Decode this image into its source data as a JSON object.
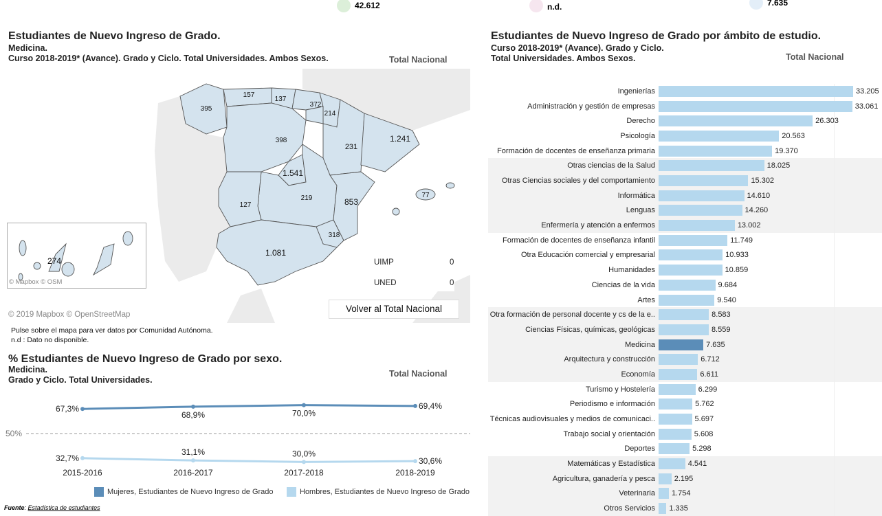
{
  "summary": [
    {
      "value": "42.612",
      "color": "#dcefd9"
    },
    {
      "value": "n.d.",
      "color": "#f6e6ef"
    },
    {
      "value": "7.635",
      "color": "#e3eef8"
    }
  ],
  "map_panel": {
    "title": "Estudiantes de Nuevo Ingreso de Grado.",
    "subtitle1": "Medicina.",
    "subtitle2": "Curso 2018-2019*  (Avance). Grado y Ciclo. Total Universidades. Ambos Sexos.",
    "scope": "Total Nacional",
    "regions": [
      {
        "name": "Galicia",
        "value": "395"
      },
      {
        "name": "Asturias",
        "value": "157"
      },
      {
        "name": "Cantabria",
        "value": "137"
      },
      {
        "name": "País Vasco",
        "value": "372"
      },
      {
        "name": "Navarra",
        "value": "214"
      },
      {
        "name": "Castilla y León",
        "value": "398"
      },
      {
        "name": "Aragón",
        "value": "231"
      },
      {
        "name": "Cataluña",
        "value": "1.241"
      },
      {
        "name": "Madrid",
        "value": "1.541"
      },
      {
        "name": "Castilla-La Mancha",
        "value": "219"
      },
      {
        "name": "Extremadura",
        "value": "127"
      },
      {
        "name": "C. Valenciana",
        "value": "853"
      },
      {
        "name": "Murcia",
        "value": "318"
      },
      {
        "name": "Andalucía",
        "value": "1.081"
      },
      {
        "name": "Baleares",
        "value": "77"
      },
      {
        "name": "Canarias",
        "value": "274"
      }
    ],
    "others": [
      {
        "label": "UIMP",
        "value": "0"
      },
      {
        "label": "UNED",
        "value": "0"
      }
    ],
    "inset_credit": "© Mapbox  © OSM",
    "credit": "© 2019 Mapbox  © OpenStreetMap",
    "back_button": "Volver al Total Nacional",
    "note1": "Pulse sobre el mapa para ver datos por Comunidad Autónoma.",
    "note2": "n.d : Dato no disponible."
  },
  "sex_panel": {
    "title": "% Estudiantes de Nuevo Ingreso de Grado por sexo.",
    "subtitle1": "Medicina.",
    "subtitle2": "Grado y Ciclo. Total Universidades.",
    "scope": "Total Nacional"
  },
  "chart_data": [
    {
      "type": "line",
      "categories": [
        "2015-2016",
        "2016-2017",
        "2017-2018",
        "2018-2019"
      ],
      "reference_line": {
        "value": 50,
        "label": "50%"
      },
      "series": [
        {
          "name": "Mujeres, Estudiantes de Nuevo Ingreso de Grado",
          "values": [
            67.3,
            68.9,
            70.0,
            69.4
          ],
          "labels": [
            "67,3%",
            "68,9%",
            "70,0%",
            "69,4%"
          ],
          "color": "#5b8db8"
        },
        {
          "name": "Hombres, Estudiantes de Nuevo Ingreso de Grado",
          "values": [
            32.7,
            31.1,
            30.0,
            30.6
          ],
          "labels": [
            "32,7%",
            "31,1%",
            "30,0%",
            "30,6%"
          ],
          "color": "#b5d8ee"
        }
      ]
    },
    {
      "type": "bar",
      "orientation": "horizontal",
      "title": "Estudiantes de Nuevo Ingreso de Grado por ámbito de estudio.",
      "subtitle1": "Curso 2018-2019*  (Avance).  Grado y Ciclo.",
      "subtitle2": "Total Universidades.  Ambos Sexos.",
      "scope": "Total Nacional",
      "highlight": "Medicina",
      "color": "#b5d8ee",
      "highlight_color": "#5b8db8",
      "categories": [
        "Ingenierías",
        "Administración y gestión de empresas",
        "Derecho",
        "Psicología",
        "Formación de docentes de enseñanza primaria",
        "Otras ciencias de la Salud",
        "Otras Ciencias sociales y del comportamiento",
        "Informática",
        "Lenguas",
        "Enfermería y atención a enfermos",
        "Formación de docentes de enseñanza infantil",
        "Otra Educación comercial y empresarial",
        "Humanidades",
        "Ciencias de la vida",
        "Artes",
        "Otra formación de personal docente y cs de la e..",
        "Ciencias Físicas, químicas, geológicas",
        "Medicina",
        "Arquitectura y construcción",
        "Economía",
        "Turismo y Hostelería",
        "Periodismo e información",
        "Técnicas audiovisuales y medios de comunicaci..",
        "Trabajo social y orientación",
        "Deportes",
        "Matemáticas y Estadística",
        "Agricultura, ganadería y pesca",
        "Veterinaria",
        "Otros Servicios"
      ],
      "values": [
        33205,
        33061,
        26303,
        20563,
        19370,
        18025,
        15302,
        14610,
        14260,
        13002,
        11749,
        10933,
        10859,
        9684,
        9540,
        8583,
        8559,
        7635,
        6712,
        6611,
        6299,
        5762,
        5697,
        5608,
        5298,
        4541,
        2195,
        1754,
        1335
      ],
      "labels": [
        "33.205",
        "33.061",
        "26.303",
        "20.563",
        "19.370",
        "18.025",
        "15.302",
        "14.610",
        "14.260",
        "13.002",
        "11.749",
        "10.933",
        "10.859",
        "9.684",
        "9.540",
        "8.583",
        "8.559",
        "7.635",
        "6.712",
        "6.611",
        "6.299",
        "5.762",
        "5.697",
        "5.608",
        "5.298",
        "4.541",
        "2.195",
        "1.754",
        "1.335"
      ]
    }
  ],
  "footer": {
    "source_label": "Fuente",
    "source_link": "Estadística de estudiantes"
  }
}
